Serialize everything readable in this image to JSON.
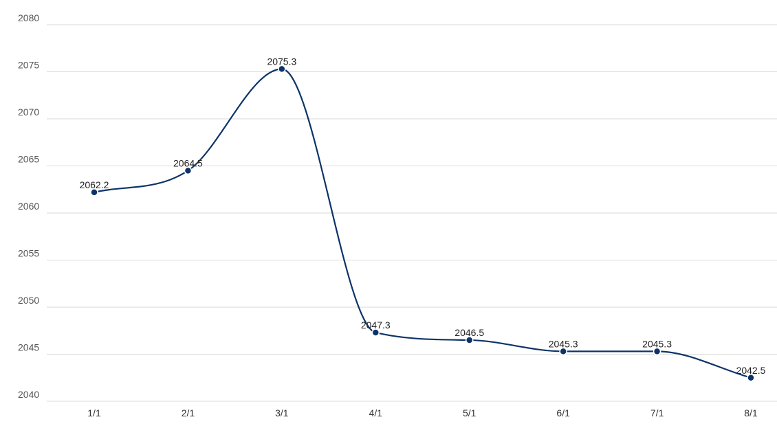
{
  "chart_data": {
    "type": "line",
    "title": "",
    "xlabel": "",
    "ylabel": "",
    "categories": [
      "1/1",
      "2/1",
      "3/1",
      "4/1",
      "5/1",
      "6/1",
      "7/1",
      "8/1"
    ],
    "series": [
      {
        "values": [
          2062.2,
          2064.5,
          2075.3,
          2047.3,
          2046.5,
          2045.3,
          2045.3,
          2042.5
        ]
      }
    ],
    "data_labels": [
      "2062.2",
      "2064.5",
      "2075.3",
      "2047.3",
      "2046.5",
      "2045.3",
      "2045.3",
      "2042.5"
    ],
    "ylim": [
      2040,
      2080
    ],
    "yticks": [
      "2040",
      "2045",
      "2050",
      "2055",
      "2060",
      "2065",
      "2070",
      "2075",
      "2080"
    ],
    "grid": true,
    "smooth": true,
    "legend": "none",
    "colors": {
      "series": "#0d3468",
      "grid": "#d9d9d9"
    }
  }
}
